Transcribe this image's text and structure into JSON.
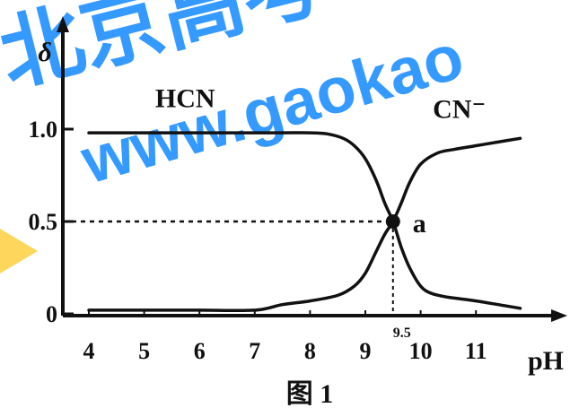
{
  "watermark": {
    "logo_text": "北京高考",
    "site_text": "www.gaokao",
    "colors": {
      "primary": "#1f8fff",
      "accent": "#ffd24a"
    }
  },
  "chart_data": {
    "type": "line",
    "title": "",
    "caption": "图 1",
    "xlabel": "pH",
    "ylabel": "δ",
    "xlim": [
      4,
      12
    ],
    "ylim": [
      0,
      1.05
    ],
    "xticks": [
      4,
      5,
      6,
      7,
      8,
      9,
      10,
      11
    ],
    "x_tick_labels": [
      "4",
      "5",
      "6",
      "7",
      "8",
      "9",
      "10",
      "11"
    ],
    "yticks": [
      0,
      0.5,
      1.0
    ],
    "y_tick_labels": [
      "0",
      "0.5",
      "1.0"
    ],
    "series": [
      {
        "name": "HCN",
        "x": [
          4,
          5,
          6,
          7,
          7.5,
          8,
          8.3,
          8.6,
          8.8,
          9.0,
          9.2,
          9.35,
          9.5,
          9.65,
          9.8,
          10.0,
          10.2,
          10.5,
          11.0,
          11.5,
          11.8
        ],
        "y": [
          0.98,
          0.98,
          0.98,
          0.98,
          0.98,
          0.98,
          0.975,
          0.95,
          0.91,
          0.84,
          0.72,
          0.6,
          0.5,
          0.36,
          0.25,
          0.15,
          0.11,
          0.09,
          0.07,
          0.045,
          0.03
        ]
      },
      {
        "name": "CN⁻",
        "x": [
          4,
          5,
          6,
          7,
          7.5,
          8,
          8.5,
          8.8,
          9.0,
          9.2,
          9.35,
          9.5,
          9.65,
          9.8,
          10.0,
          10.3,
          10.6,
          11.0,
          11.4,
          11.8
        ],
        "y": [
          0.02,
          0.02,
          0.02,
          0.02,
          0.05,
          0.07,
          0.1,
          0.15,
          0.22,
          0.34,
          0.43,
          0.5,
          0.6,
          0.71,
          0.81,
          0.87,
          0.89,
          0.91,
          0.93,
          0.95
        ]
      }
    ],
    "annotations": {
      "point_label": "a",
      "point": {
        "x": 9.5,
        "y": 0.5
      },
      "x_marker_label": "9.5",
      "dashed_reference_lines": true
    }
  }
}
